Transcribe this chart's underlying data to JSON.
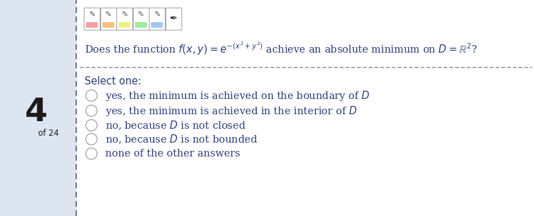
{
  "bg_color": "#dde5f0",
  "main_bg": "#ffffff",
  "question_number": "4",
  "of_text": "of 24",
  "select_one_label": "Select one:",
  "dashed_line_color": "#888888",
  "text_color": "#2c3e7a",
  "radio_color": "#aaaaaa",
  "left_bar_color": "#4a5a8a",
  "toolbar_colors": [
    "#f5a0a0",
    "#f5c080",
    "#f0f080",
    "#a0e8a0",
    "#a0c8f0"
  ],
  "number_color": "#1a1a1a",
  "number_fontsize": 34,
  "option_fontsize": 10.5,
  "select_fontsize": 10.5
}
